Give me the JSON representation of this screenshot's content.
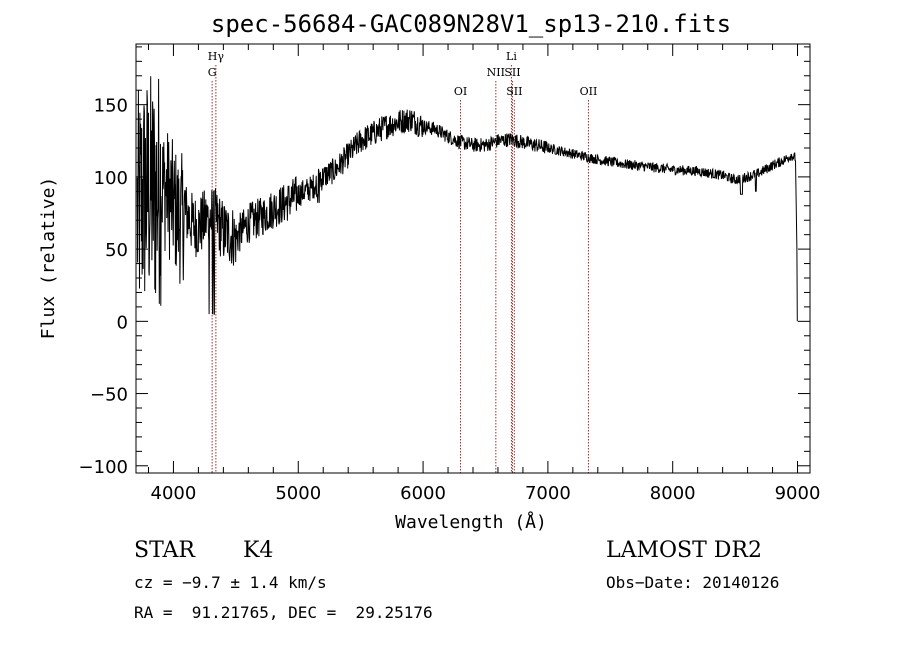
{
  "chart_data": {
    "type": "line",
    "title": "spec-56684-GAC089N28V1_sp13-210.fits",
    "xlabel": "Wavelength (Å)",
    "ylabel": "Flux (relative)",
    "xlim": [
      3700,
      9100
    ],
    "ylim": [
      -105,
      192
    ],
    "xticks": [
      4000,
      5000,
      6000,
      7000,
      8000,
      9000
    ],
    "yticks": [
      -100,
      -50,
      0,
      50,
      100,
      150
    ],
    "xtick_labels": [
      "4000",
      "5000",
      "6000",
      "7000",
      "8000",
      "9000"
    ],
    "ytick_labels": [
      "−100",
      "−50",
      "0",
      "50",
      "100",
      "150"
    ],
    "spectrum_color": "#000000",
    "line_marker_color": "#a0302f",
    "spectral_lines": [
      {
        "label": "Hγ",
        "wavelength": 4340,
        "row": 0
      },
      {
        "label": "G",
        "wavelength": 4310,
        "row": 1
      },
      {
        "label": "OI",
        "wavelength": 6300,
        "row": 2
      },
      {
        "label": "NII",
        "wavelength": 6583,
        "row": 1
      },
      {
        "label": "Li",
        "wavelength": 6708,
        "row": 0
      },
      {
        "label": "SII",
        "wavelength": 6716,
        "row": 1
      },
      {
        "label": "SII",
        "wavelength": 6731,
        "row": 2
      },
      {
        "label": "OII",
        "wavelength": 7325,
        "row": 2
      }
    ],
    "spectrum": {
      "x": [
        3700,
        3750,
        3800,
        3850,
        3900,
        3950,
        4000,
        4050,
        4100,
        4150,
        4200,
        4250,
        4300,
        4350,
        4400,
        4450,
        4500,
        4600,
        4700,
        4800,
        4900,
        5000,
        5100,
        5200,
        5300,
        5400,
        5500,
        5600,
        5700,
        5800,
        5900,
        6000,
        6100,
        6200,
        6300,
        6400,
        6500,
        6600,
        6700,
        6800,
        6900,
        7000,
        7200,
        7400,
        7600,
        7800,
        8000,
        8200,
        8400,
        8500,
        8600,
        8700,
        8800,
        8900,
        8950,
        9000
      ],
      "y": [
        70,
        85,
        90,
        88,
        95,
        90,
        80,
        70,
        75,
        68,
        65,
        70,
        72,
        70,
        62,
        60,
        58,
        68,
        72,
        78,
        82,
        88,
        92,
        100,
        105,
        115,
        125,
        130,
        135,
        138,
        140,
        135,
        133,
        128,
        124,
        122,
        122,
        125,
        126,
        124,
        122,
        120,
        116,
        112,
        109,
        107,
        105,
        104,
        101,
        98,
        100,
        103,
        108,
        112,
        115,
        112
      ]
    }
  },
  "info": {
    "object_class": "STAR",
    "subclass": "K4",
    "survey": "LAMOST DR2",
    "cz": "cz = −9.7 ± 1.4 km/s",
    "obs_date": "Obs−Date: 20140126",
    "coords": "RA =  91.21765, DEC =  29.25176"
  }
}
